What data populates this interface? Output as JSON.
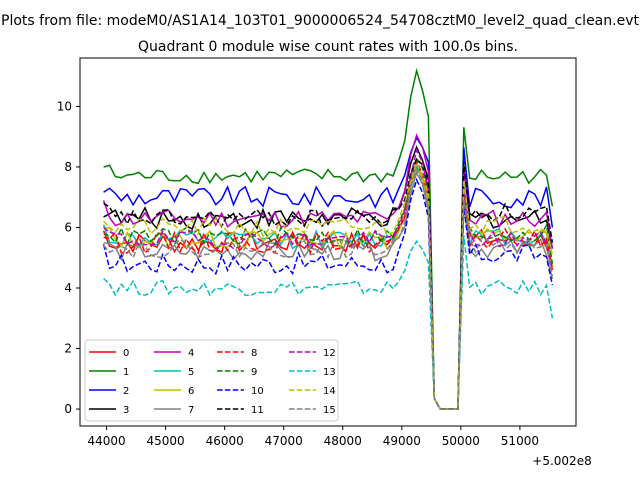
{
  "chart_data": {
    "type": "line",
    "suptitle": "Plots from file: modeM0/AS1A14_103T01_9000006524_54708cztM0_level2_quad_clean.evt",
    "title": "Quadrant 0 module wise count rates with 100.0s bins.",
    "xlabel": "",
    "ylabel": "",
    "x_offset_label": "+5.002e8",
    "xlim": [
      43550,
      51950
    ],
    "ylim": [
      -0.56,
      11.6
    ],
    "x_ticks": [
      44000,
      45000,
      46000,
      47000,
      48000,
      49000,
      50000,
      51000
    ],
    "x_tick_labels": [
      "44000",
      "45000",
      "46000",
      "47000",
      "48000",
      "49000",
      "50000",
      "51000"
    ],
    "y_ticks": [
      0,
      2,
      4,
      6,
      8,
      10
    ],
    "y_tick_labels": [
      "0",
      "2",
      "4",
      "6",
      "8",
      "10"
    ],
    "grid": false,
    "legend_placement": "lower-left",
    "x_start": 43950,
    "x_step": 100,
    "series": [
      {
        "name": "0",
        "color": "#ff0000",
        "dash": "solid",
        "baseline": 5.5,
        "amp": 0.35,
        "peak": 8.1,
        "post": 5.6
      },
      {
        "name": "1",
        "color": "#008000",
        "dash": "solid",
        "baseline": 7.7,
        "amp": 0.25,
        "peak": 11.1,
        "post": 7.7
      },
      {
        "name": "2",
        "color": "#0000ff",
        "dash": "solid",
        "baseline": 7.0,
        "amp": 0.35,
        "peak": 9.0,
        "post": 7.0
      },
      {
        "name": "3",
        "color": "#000000",
        "dash": "solid",
        "baseline": 6.3,
        "amp": 0.35,
        "peak": 8.6,
        "post": 6.3
      },
      {
        "name": "4",
        "color": "#bf00bf",
        "dash": "solid",
        "baseline": 6.3,
        "amp": 0.3,
        "peak": 9.1,
        "post": 6.3
      },
      {
        "name": "5",
        "color": "#00bfbf",
        "dash": "solid",
        "baseline": 5.6,
        "amp": 0.3,
        "peak": 8.0,
        "post": 5.7
      },
      {
        "name": "6",
        "color": "#bfbf00",
        "dash": "solid",
        "baseline": 5.6,
        "amp": 0.3,
        "peak": 8.0,
        "post": 5.7
      },
      {
        "name": "7",
        "color": "#808080",
        "dash": "solid",
        "baseline": 5.2,
        "amp": 0.3,
        "peak": 7.8,
        "post": 5.3
      },
      {
        "name": "8",
        "color": "#ff0000",
        "dash": "dashed",
        "baseline": 5.5,
        "amp": 0.35,
        "peak": 8.1,
        "post": 5.6
      },
      {
        "name": "9",
        "color": "#008000",
        "dash": "dashed",
        "baseline": 5.7,
        "amp": 0.3,
        "peak": 8.3,
        "post": 5.8
      },
      {
        "name": "10",
        "color": "#0000ff",
        "dash": "dashed",
        "baseline": 4.8,
        "amp": 0.35,
        "peak": 7.5,
        "post": 5.1
      },
      {
        "name": "11",
        "color": "#000000",
        "dash": "dashed",
        "baseline": 6.3,
        "amp": 0.3,
        "peak": 8.3,
        "post": 6.5
      },
      {
        "name": "12",
        "color": "#bf00bf",
        "dash": "dashed",
        "baseline": 5.6,
        "amp": 0.3,
        "peak": 8.5,
        "post": 5.6
      },
      {
        "name": "13",
        "color": "#00bfbf",
        "dash": "dashed",
        "baseline": 4.0,
        "amp": 0.25,
        "peak": 5.6,
        "post": 4.0
      },
      {
        "name": "14",
        "color": "#bfbf00",
        "dash": "dashed",
        "baseline": 6.0,
        "amp": 0.3,
        "peak": 8.1,
        "post": 6.1
      },
      {
        "name": "15",
        "color": "#808080",
        "dash": "dashed",
        "baseline": 5.3,
        "amp": 0.3,
        "peak": 8.0,
        "post": 5.4
      }
    ]
  }
}
